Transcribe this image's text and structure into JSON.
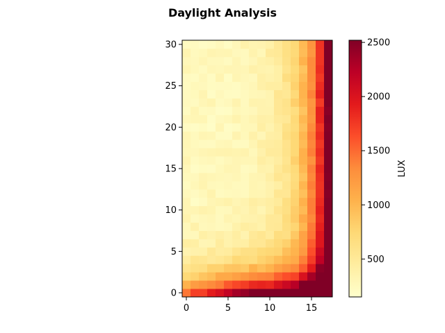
{
  "chart_data": {
    "type": "heatmap",
    "title": "Daylight Analysis",
    "xlabel": "",
    "ylabel": "",
    "colorbar_label": "LUX",
    "colormap": "YlOrRd",
    "x_range": [
      0,
      17
    ],
    "y_range": [
      0,
      30
    ],
    "xticks": [
      0,
      5,
      10,
      15
    ],
    "yticks": [
      0,
      5,
      10,
      15,
      20,
      25,
      30
    ],
    "colorbar_range": [
      150,
      2520
    ],
    "colorbar_ticks": [
      500,
      1000,
      1500,
      2000,
      2500
    ],
    "grid": false,
    "cell_model": {
      "description_of_values": "lux per grid cell, row = y (0..30), column = x (0..17)",
      "back_wall_peak_lux": 2300,
      "front_wall_peak_lux": 2300,
      "ambient_lux": 250
    }
  }
}
